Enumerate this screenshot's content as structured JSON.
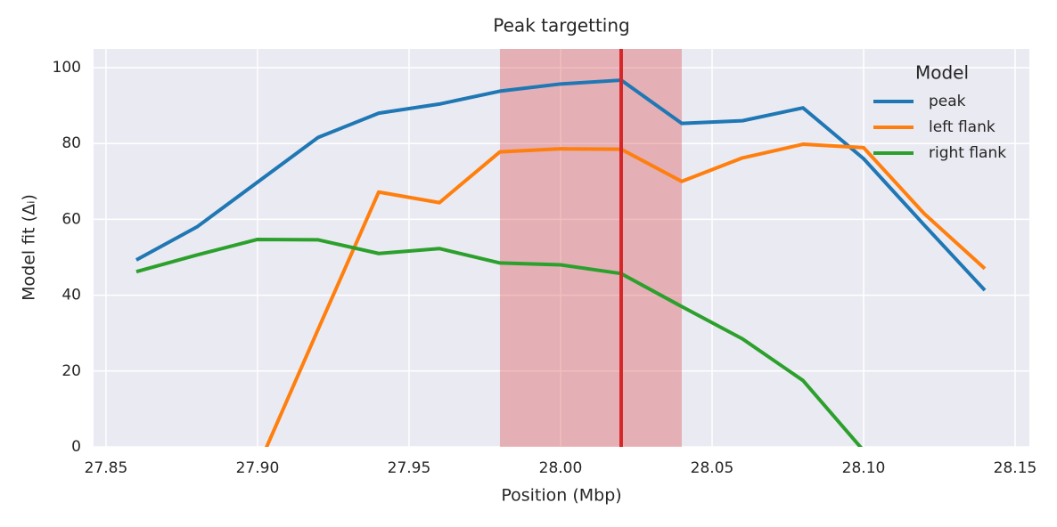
{
  "chart_data": {
    "type": "line",
    "title": "Peak targetting",
    "xlabel": "Position (Mbp)",
    "ylabel": "Model fit (Δᵢ)",
    "x": [
      27.86,
      27.88,
      27.9,
      27.92,
      27.94,
      27.96,
      27.98,
      28.0,
      28.02,
      28.04,
      28.06,
      28.08,
      28.1,
      28.12,
      28.14
    ],
    "series": [
      {
        "name": "peak",
        "color": "#1f77b4",
        "values": [
          49.3,
          58,
          69.8,
          81.6,
          88,
          90.4,
          93.8,
          95.7,
          96.7,
          85.3,
          86,
          89.4,
          76,
          58.5,
          41.3
        ]
      },
      {
        "name": "left flank",
        "color": "#ff7f0e",
        "values": [
          null,
          null,
          -5.5,
          31,
          67.2,
          64.4,
          77.8,
          78.6,
          78.5,
          70,
          76.2,
          79.8,
          78.9,
          61.5,
          47
        ]
      },
      {
        "name": "right flank",
        "color": "#2ca02c",
        "values": [
          46.2,
          50.6,
          54.7,
          54.6,
          51,
          52.3,
          48.5,
          48,
          45.7,
          37,
          28.5,
          17.5,
          -1,
          null,
          null
        ]
      }
    ],
    "vline": 28.02,
    "vline_color": "#d62728",
    "span": [
      27.98,
      28.04
    ],
    "span_color": "#d62728",
    "xlim": [
      27.8459,
      28.1547
    ],
    "ylim": [
      0,
      104.93
    ],
    "xticks": [
      27.85,
      {
        "value": 27.9,
        "label": "27.90"
      },
      27.95,
      {
        "value": 28.0,
        "label": "28.00"
      },
      28.05,
      {
        "value": 28.1,
        "label": "28.10"
      },
      28.15
    ],
    "yticks": [
      0,
      20,
      40,
      60,
      80,
      100
    ],
    "grid": true,
    "legend_title": "Model",
    "legend_loc": "upper right"
  }
}
